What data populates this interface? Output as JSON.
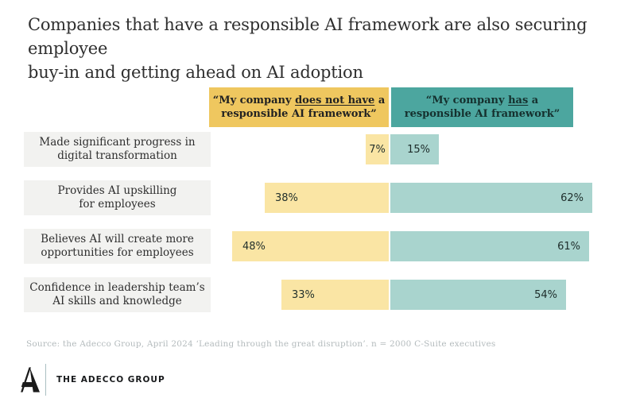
{
  "title": {
    "line1": "Companies that have a responsible AI framework are also securing employee",
    "line2": "buy-in and getting ahead on AI adoption"
  },
  "legend": {
    "no_framework": {
      "prefix": "“My company ",
      "underlined": "does not have",
      "mid": " a",
      "line2": "responsible AI framework”"
    },
    "has_framework": {
      "prefix": "“My company ",
      "underlined": "has",
      "mid": " a",
      "line2": "responsible AI framework”"
    }
  },
  "chart_data": {
    "type": "bar",
    "orientation": "diverging-horizontal",
    "legend_position": "top",
    "value_unit": "%",
    "xlim": [
      0,
      70
    ],
    "categories": [
      "Made significant progress in digital transformation",
      "Provides AI upskilling for employees",
      "Believes AI will create more opportunities for employees",
      "Confidence in leadership team’s AI skills and knowledge"
    ],
    "categories_lines": [
      [
        "Made significant progress in",
        "digital transformation"
      ],
      [
        "Provides AI upskilling",
        "for employees"
      ],
      [
        "Believes AI will create more",
        "opportunities for employees"
      ],
      [
        "Confidence in leadership team’s",
        "AI skills and knowledge"
      ]
    ],
    "series": [
      {
        "name": "“My company does not have a responsible AI framework”",
        "side": "left",
        "values": [
          7,
          38,
          48,
          33
        ],
        "labels": [
          "7%",
          "38%",
          "48%",
          "33%"
        ],
        "bar_color": "#FAE5A4",
        "header_color": "#EFC75F"
      },
      {
        "name": "“My company has a responsible AI framework”",
        "side": "right",
        "values": [
          15,
          62,
          61,
          54
        ],
        "labels": [
          "15%",
          "62%",
          "61%",
          "54%"
        ],
        "bar_color": "#A9D4CE",
        "header_color": "#4CA69F"
      }
    ]
  },
  "source": "Source: the Adecco Group, April 2024 ‘Leading through the great disruption’. n = 2000 C-Suite executives",
  "footer": {
    "logo_text": "THE ADECCO GROUP"
  },
  "colors": {
    "background": "#ffffff",
    "bar_yellow": "#FAE5A4",
    "bar_teal": "#A9D4CE",
    "header_yellow": "#EFC75F",
    "header_teal": "#4CA69F",
    "category_box": "#F2F2F0",
    "title_text": "#2F2F2F",
    "source_text": "#B4BBBD"
  }
}
